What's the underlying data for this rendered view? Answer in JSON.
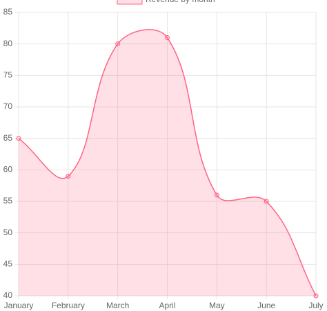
{
  "chart_data": {
    "type": "line",
    "categories": [
      "January",
      "February",
      "March",
      "April",
      "May",
      "June",
      "July"
    ],
    "series": [
      {
        "name": "Revenue by month",
        "color": "#ff6384",
        "fill": "rgba(255,99,132,0.2)",
        "values": [
          65,
          59,
          80,
          81,
          56,
          55,
          40
        ]
      }
    ],
    "ylim": [
      40,
      85
    ],
    "yticks": [
      40,
      45,
      50,
      55,
      60,
      65,
      70,
      75,
      80,
      85
    ],
    "grid": true,
    "legend": "top"
  }
}
